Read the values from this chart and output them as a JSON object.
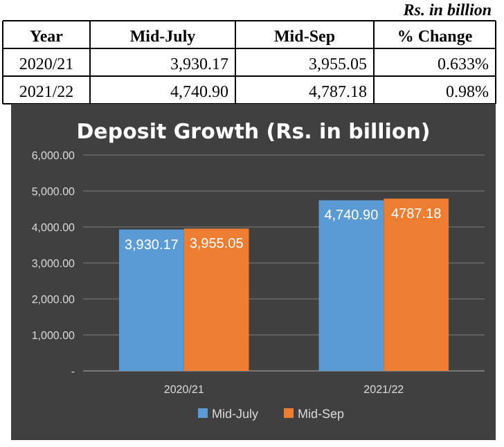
{
  "chart_data": [
    {
      "type": "other",
      "subtitle": "Rs. in billion",
      "annotations": [
        "Year",
        "Mid-July",
        "Mid-Sep",
        "% Change",
        "2020/21",
        "3,930.17",
        "3,955.05",
        "0.633%",
        "2021/22",
        "4,740.90",
        "4,787.18",
        "0.98%"
      ]
    },
    {
      "type": "bar",
      "title": "Deposit Growth (Rs. in billion)",
      "categories": [
        "2020/21",
        "2021/22"
      ],
      "series": [
        {
          "name": "Mid-July",
          "color": "#5b9bd5",
          "values": [
            3930.17,
            4740.9
          ],
          "value_labels": [
            "3,930.17",
            "4,740.90"
          ]
        },
        {
          "name": "Mid-Sep",
          "color": "#ed7d31",
          "values": [
            3955.05,
            4787.18
          ],
          "value_labels": [
            "3,955.05",
            "4787.18"
          ]
        }
      ],
      "ylim": [
        0,
        6000
      ],
      "yticks": [
        {
          "value": 0,
          "label": "-"
        },
        {
          "value": 1000,
          "label": "1,000.00"
        },
        {
          "value": 2000,
          "label": "2,000.00"
        },
        {
          "value": 3000,
          "label": "3,000.00"
        },
        {
          "value": 4000,
          "label": "4,000.00"
        },
        {
          "value": 5000,
          "label": "5,000.00"
        },
        {
          "value": 6000,
          "label": "6,000.00"
        }
      ],
      "grid": "y",
      "legend": "bottom"
    }
  ]
}
